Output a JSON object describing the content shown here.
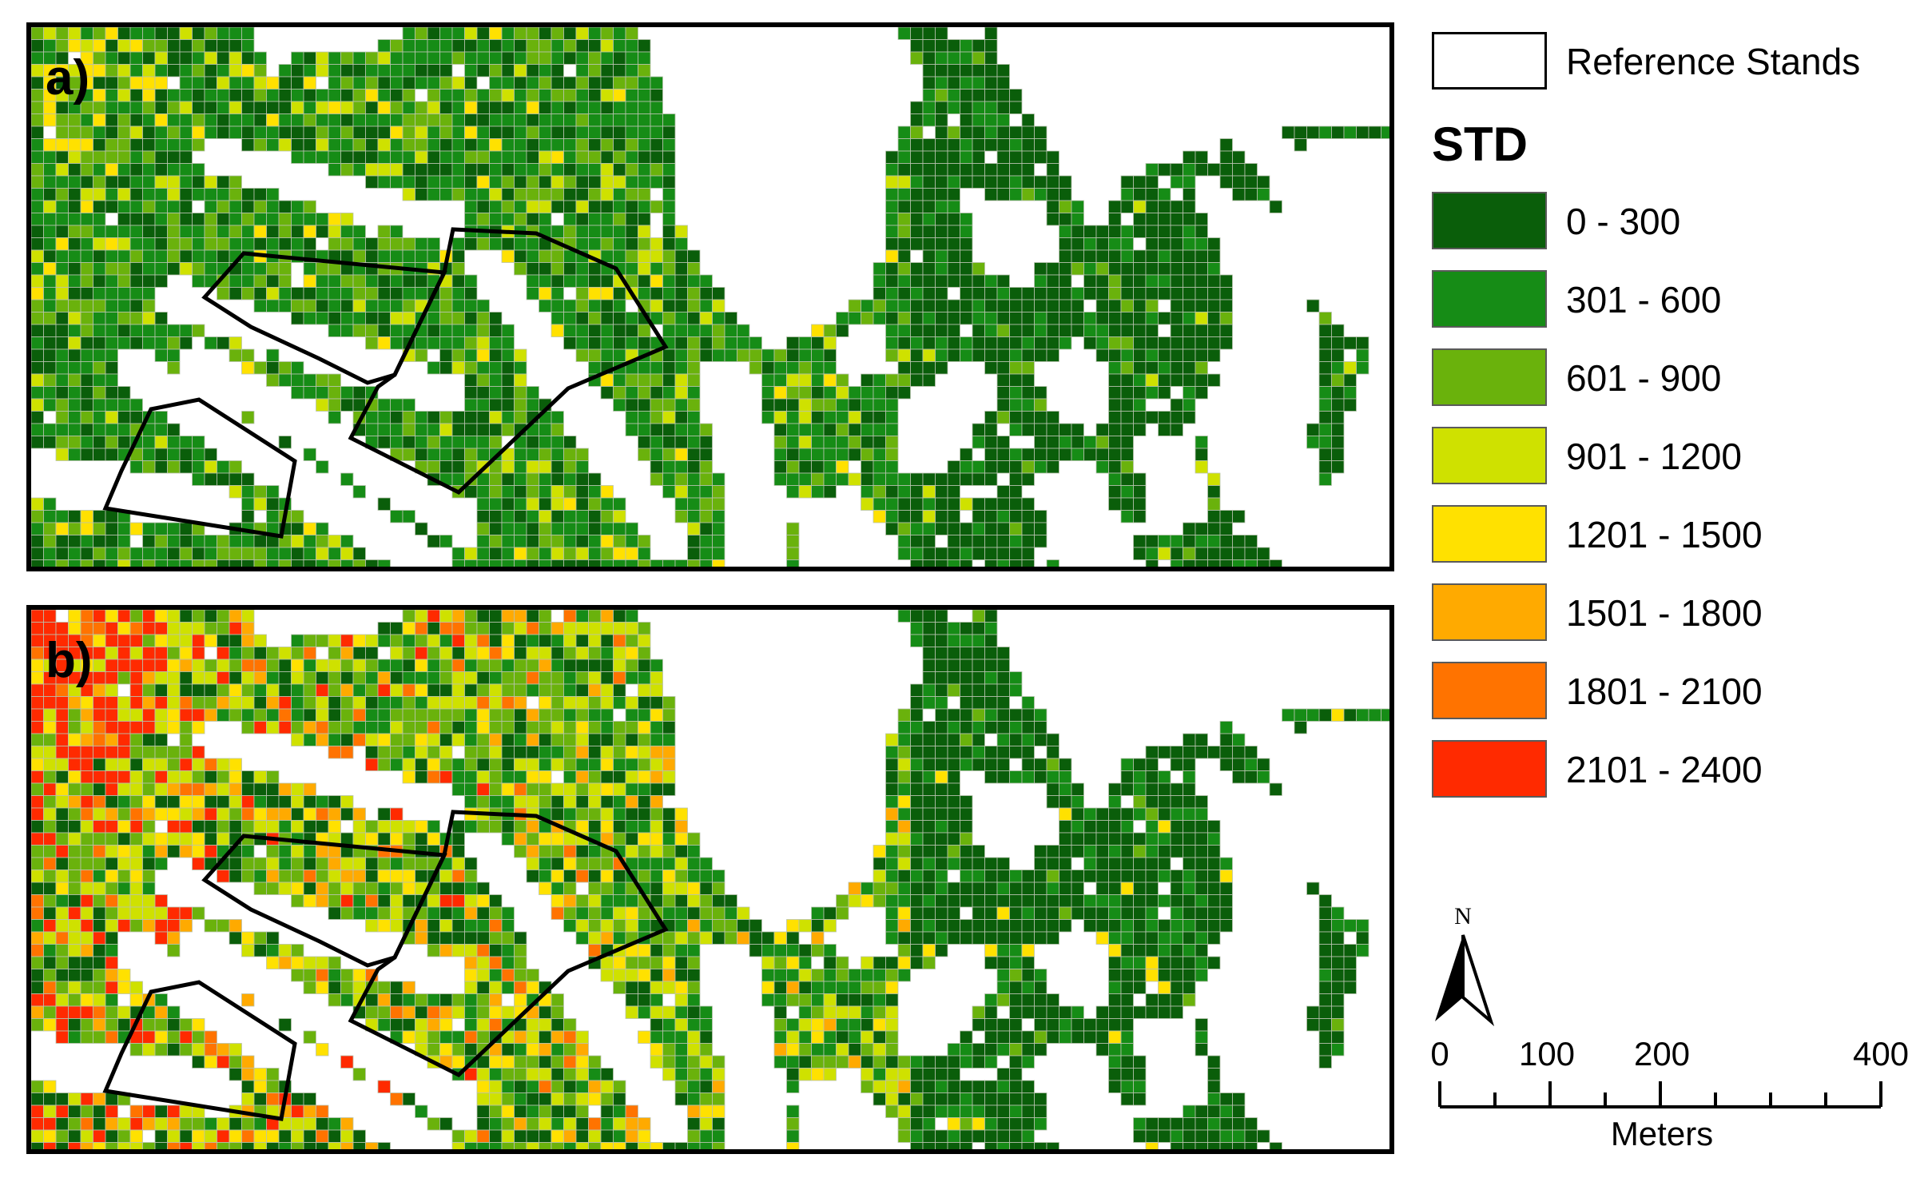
{
  "panels": [
    {
      "id": "a",
      "label": "a)",
      "seed": 17,
      "high_bias": 0.0
    },
    {
      "id": "b",
      "label": "b)",
      "seed": 53,
      "high_bias": 1.0
    }
  ],
  "legend": {
    "reference_label": "Reference Stands",
    "title": "STD",
    "classes": [
      {
        "label": "0 - 300",
        "color": "#0a5e0a"
      },
      {
        "label": "301 - 600",
        "color": "#168c16"
      },
      {
        "label": "601 - 900",
        "color": "#6ab20c"
      },
      {
        "label": "901 - 1200",
        "color": "#cfe100"
      },
      {
        "label": "1201 - 1500",
        "color": "#ffe100"
      },
      {
        "label": "1501 - 1800",
        "color": "#ffaa00"
      },
      {
        "label": "1801 - 2100",
        "color": "#ff7300"
      },
      {
        "label": "2101 - 2400",
        "color": "#ff2a00"
      }
    ]
  },
  "north_arrow": {
    "label": "N"
  },
  "scale_bar": {
    "tick_labels": [
      "0",
      "100",
      "200",
      "400"
    ],
    "tick_values": [
      0,
      100,
      200,
      400
    ],
    "unit": "Meters"
  }
}
